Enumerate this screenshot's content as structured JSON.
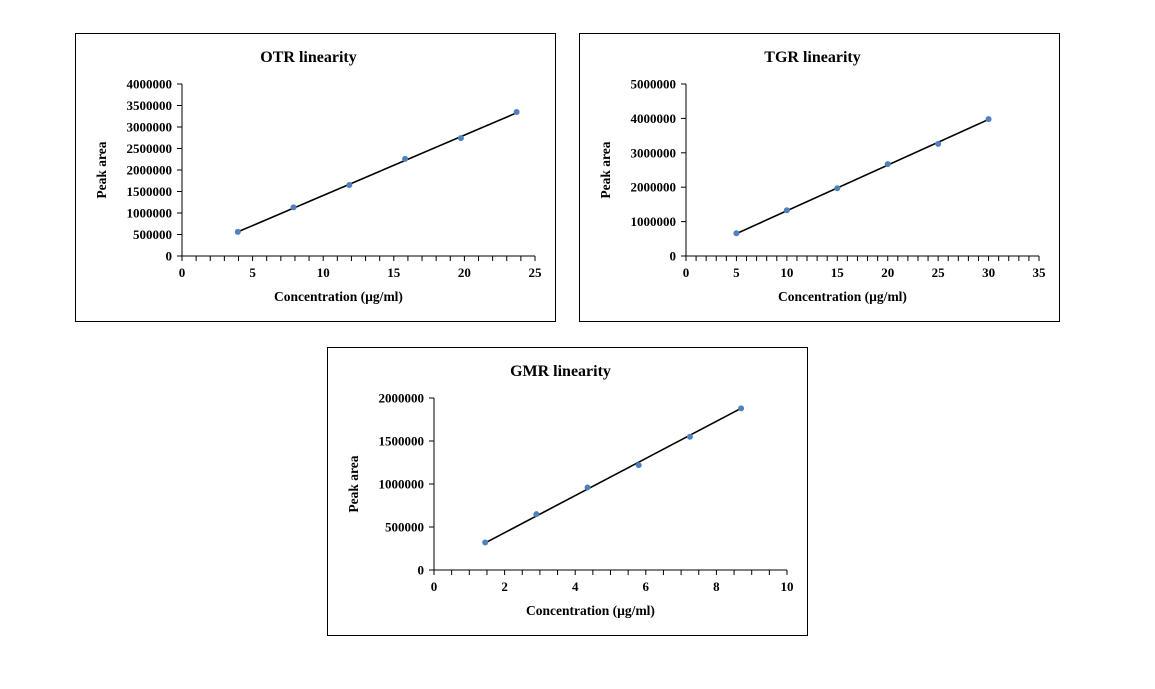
{
  "chart_data": [
    {
      "type": "scatter",
      "title": "OTR linearity",
      "xlabel": "Concentration  (µg/ml)",
      "ylabel": "Peak area",
      "xlim": [
        0,
        25
      ],
      "ylim": [
        0,
        4000000
      ],
      "x_ticks": [
        0,
        5,
        10,
        15,
        20,
        25
      ],
      "y_ticks": [
        0,
        500000,
        1000000,
        1500000,
        2000000,
        2500000,
        3000000,
        3500000,
        4000000
      ],
      "x_minor_step": 1,
      "series": [
        {
          "x": [
            3.95,
            7.9,
            11.85,
            15.8,
            19.75,
            23.7
          ],
          "y": [
            560000,
            1130000,
            1650000,
            2260000,
            2740000,
            3350000
          ]
        }
      ],
      "trendline": {
        "x": [
          3.95,
          23.7
        ],
        "y": [
          560000,
          3330000
        ]
      },
      "marker_color": "#4f81bd",
      "line_color": "#000000"
    },
    {
      "type": "scatter",
      "title": "TGR linearity",
      "xlabel": "Concentration  (µg/ml)",
      "ylabel": "Peak area",
      "xlim": [
        0,
        35
      ],
      "ylim": [
        0,
        5000000
      ],
      "x_ticks": [
        0,
        5,
        10,
        15,
        20,
        25,
        30,
        35
      ],
      "y_ticks": [
        0,
        1000000,
        2000000,
        3000000,
        4000000,
        5000000
      ],
      "x_minor_step": 1,
      "series": [
        {
          "x": [
            5,
            10,
            15,
            20,
            25,
            30
          ],
          "y": [
            660000,
            1330000,
            1970000,
            2670000,
            3260000,
            3980000
          ]
        }
      ],
      "trendline": {
        "x": [
          5,
          30
        ],
        "y": [
          650000,
          3970000
        ]
      },
      "marker_color": "#4f81bd",
      "line_color": "#000000"
    },
    {
      "type": "scatter",
      "title": "GMR linearity",
      "xlabel": "Concentration  (µg/ml)",
      "ylabel": "Peak area",
      "xlim": [
        0,
        10
      ],
      "ylim": [
        0,
        2000000
      ],
      "x_ticks": [
        0,
        2,
        4,
        6,
        8,
        10
      ],
      "y_ticks": [
        0,
        500000,
        1000000,
        1500000,
        2000000
      ],
      "x_minor_step": 0.5,
      "series": [
        {
          "x": [
            1.45,
            2.9,
            4.35,
            5.8,
            7.25,
            8.7
          ],
          "y": [
            320000,
            650000,
            960000,
            1220000,
            1550000,
            1880000
          ]
        }
      ],
      "trendline": {
        "x": [
          1.45,
          8.7
        ],
        "y": [
          315000,
          1880000
        ]
      },
      "marker_color": "#4f81bd",
      "line_color": "#000000"
    }
  ]
}
